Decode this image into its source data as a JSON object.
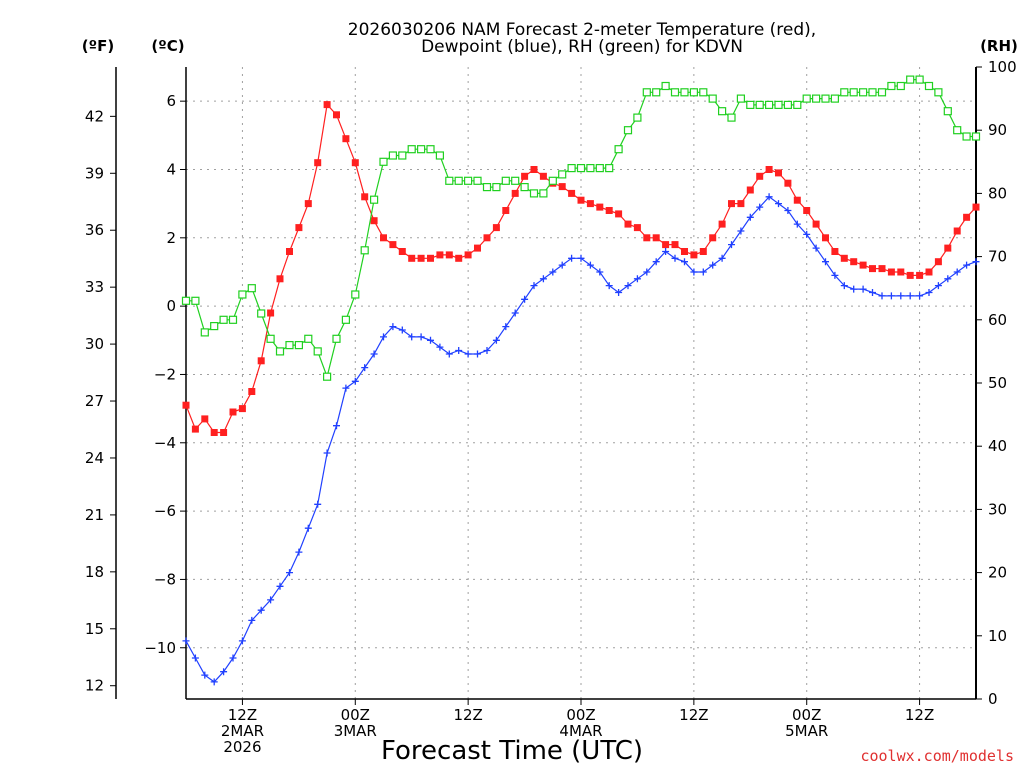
{
  "chart_data": {
    "type": "line",
    "title_lines": [
      "2026030206 NAM Forecast 2-meter Temperature (red),",
      "Dewpoint (blue), RH (green) for KDVN"
    ],
    "xlabel": "Forecast Time (UTC)",
    "credit": "coolwx.com/models",
    "axis_units": {
      "fahrenheit": "(ºF)",
      "celsius": "(ºC)",
      "rh": "(RH)"
    },
    "x_range_hours": [
      0,
      84
    ],
    "x_ticks": [
      {
        "hour": 6,
        "lines": [
          "12Z",
          "2MAR",
          "2026"
        ]
      },
      {
        "hour": 18,
        "lines": [
          "00Z",
          "3MAR"
        ]
      },
      {
        "hour": 30,
        "lines": [
          "12Z"
        ]
      },
      {
        "hour": 42,
        "lines": [
          "00Z",
          "4MAR"
        ]
      },
      {
        "hour": 54,
        "lines": [
          "12Z"
        ]
      },
      {
        "hour": 66,
        "lines": [
          "00Z",
          "5MAR"
        ]
      },
      {
        "hour": 78,
        "lines": [
          "12Z"
        ]
      }
    ],
    "celsius_axis": {
      "ylim": [
        -11.5,
        7
      ],
      "ticks": [
        -10,
        -8,
        -6,
        -4,
        -2,
        0,
        2,
        4,
        6
      ]
    },
    "fahrenheit_ticks": [
      12,
      15,
      18,
      21,
      24,
      27,
      30,
      33,
      36,
      39,
      42
    ],
    "rh_axis": {
      "ylim": [
        0,
        100
      ],
      "ticks": [
        0,
        10,
        20,
        30,
        40,
        50,
        60,
        70,
        80,
        90,
        100
      ]
    },
    "grid": true,
    "series": [
      {
        "key": "temperature",
        "axis": "celsius",
        "color": "#ff2020",
        "marker": "filled-square",
        "values": [
          -2.9,
          -3.6,
          -3.3,
          -3.7,
          -3.7,
          -3.1,
          -3.0,
          -2.5,
          -1.6,
          -0.2,
          0.8,
          1.6,
          2.3,
          3.0,
          4.2,
          5.9,
          5.6,
          4.9,
          4.2,
          3.2,
          2.5,
          2.0,
          1.8,
          1.6,
          1.4,
          1.4,
          1.4,
          1.5,
          1.5,
          1.4,
          1.5,
          1.7,
          2.0,
          2.3,
          2.8,
          3.3,
          3.8,
          4.0,
          3.8,
          3.6,
          3.5,
          3.3,
          3.1,
          3.0,
          2.9,
          2.8,
          2.7,
          2.4,
          2.3,
          2.0,
          2.0,
          1.8,
          1.8,
          1.6,
          1.5,
          1.6,
          2.0,
          2.4,
          3.0,
          3.0,
          3.4,
          3.8,
          4.0,
          3.9,
          3.6,
          3.1,
          2.8,
          2.4,
          2.0,
          1.6,
          1.4,
          1.3,
          1.2,
          1.1,
          1.1,
          1.0,
          1.0,
          0.9,
          0.9,
          1.0,
          1.3,
          1.7,
          2.2,
          2.6,
          2.9
        ]
      },
      {
        "key": "dewpoint",
        "axis": "celsius",
        "color": "#2040ff",
        "marker": "plus",
        "values": [
          -9.8,
          -10.3,
          -10.8,
          -11.0,
          -10.7,
          -10.3,
          -9.8,
          -9.2,
          -8.9,
          -8.6,
          -8.2,
          -7.8,
          -7.2,
          -6.5,
          -5.8,
          -4.3,
          -3.5,
          -2.4,
          -2.2,
          -1.8,
          -1.4,
          -0.9,
          -0.6,
          -0.7,
          -0.9,
          -0.9,
          -1.0,
          -1.2,
          -1.4,
          -1.3,
          -1.4,
          -1.4,
          -1.3,
          -1.0,
          -0.6,
          -0.2,
          0.2,
          0.6,
          0.8,
          1.0,
          1.2,
          1.4,
          1.4,
          1.2,
          1.0,
          0.6,
          0.4,
          0.6,
          0.8,
          1.0,
          1.3,
          1.6,
          1.4,
          1.3,
          1.0,
          1.0,
          1.2,
          1.4,
          1.8,
          2.2,
          2.6,
          2.9,
          3.2,
          3.0,
          2.8,
          2.4,
          2.1,
          1.7,
          1.3,
          0.9,
          0.6,
          0.5,
          0.5,
          0.4,
          0.3,
          0.3,
          0.3,
          0.3,
          0.3,
          0.4,
          0.6,
          0.8,
          1.0,
          1.2,
          1.3
        ]
      },
      {
        "key": "rh",
        "axis": "rh",
        "color": "#20d020",
        "marker": "open-square",
        "values": [
          63,
          63,
          58,
          59,
          60,
          60,
          64,
          65,
          61,
          57,
          55,
          56,
          56,
          57,
          55,
          51,
          57,
          60,
          64,
          71,
          79,
          85,
          86,
          86,
          87,
          87,
          87,
          86,
          82,
          82,
          82,
          82,
          81,
          81,
          82,
          82,
          81,
          80,
          80,
          82,
          83,
          84,
          84,
          84,
          84,
          84,
          87,
          90,
          92,
          96,
          96,
          97,
          96,
          96,
          96,
          96,
          95,
          93,
          92,
          95,
          94,
          94,
          94,
          94,
          94,
          94,
          95,
          95,
          95,
          95,
          96,
          96,
          96,
          96,
          96,
          97,
          97,
          98,
          98,
          97,
          96,
          93,
          90,
          89,
          89
        ]
      }
    ]
  }
}
